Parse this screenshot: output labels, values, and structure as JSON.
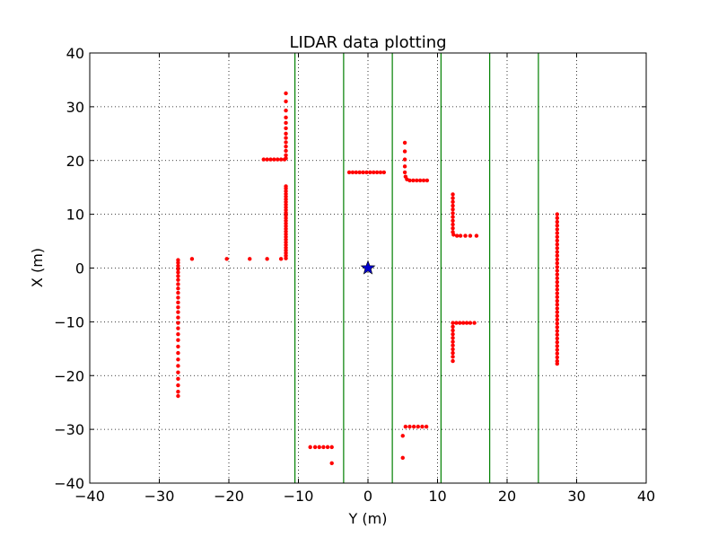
{
  "chart_data": {
    "type": "scatter",
    "title": "LIDAR data plotting",
    "xlabel": "Y (m)",
    "ylabel": "X (m)",
    "xlim": [
      -40,
      40
    ],
    "ylim": [
      -40,
      40
    ],
    "xticks": [
      -40,
      -30,
      -20,
      -10,
      0,
      10,
      20,
      30,
      40
    ],
    "yticks": [
      -40,
      -30,
      -20,
      -10,
      0,
      10,
      20,
      30,
      40
    ],
    "xtick_labels": [
      "−40",
      "−30",
      "−20",
      "−10",
      "0",
      "10",
      "20",
      "30",
      "40"
    ],
    "ytick_labels": [
      "−40",
      "−30",
      "−20",
      "−10",
      "0",
      "10",
      "20",
      "30",
      "40"
    ],
    "grid": true,
    "colors": {
      "points": "#ff0000",
      "lanes": "#008000",
      "vehicle": "#0000cc"
    },
    "lane_lines_x": [
      -10.5,
      -3.5,
      3.5,
      10.5,
      17.5,
      24.5
    ],
    "vehicle": {
      "x": 0,
      "y": 0,
      "marker": "star"
    },
    "points": [
      [
        -27.3,
        1.5
      ],
      [
        -27.3,
        1
      ],
      [
        -27.3,
        0.4
      ],
      [
        -27.3,
        -0.2
      ],
      [
        -27.3,
        -0.8
      ],
      [
        -27.3,
        -1.5
      ],
      [
        -27.3,
        -2.2
      ],
      [
        -27.3,
        -3
      ],
      [
        -27.3,
        -3.8
      ],
      [
        -27.3,
        -4.6
      ],
      [
        -27.3,
        -5.5
      ],
      [
        -27.3,
        -6.4
      ],
      [
        -27.3,
        -7.3
      ],
      [
        -27.3,
        -8.2
      ],
      [
        -27.3,
        -9.2
      ],
      [
        -27.3,
        -10.2
      ],
      [
        -27.3,
        -11.2
      ],
      [
        -27.3,
        -12.3
      ],
      [
        -27.3,
        -13.4
      ],
      [
        -27.3,
        -14.6
      ],
      [
        -27.3,
        -15.8
      ],
      [
        -27.3,
        -17
      ],
      [
        -27.3,
        -18.2
      ],
      [
        -27.3,
        -19.4
      ],
      [
        -27.3,
        -20.6
      ],
      [
        -27.3,
        -21.8
      ],
      [
        -27.3,
        -23
      ],
      [
        -27.3,
        -23.8
      ],
      [
        -25.3,
        1.7
      ],
      [
        -20.3,
        1.7
      ],
      [
        -17,
        1.7
      ],
      [
        -14.5,
        1.7
      ],
      [
        -12.5,
        1.7
      ],
      [
        -11.8,
        1.8
      ],
      [
        -11.8,
        2.3
      ],
      [
        -11.8,
        2.8
      ],
      [
        -11.8,
        3.3
      ],
      [
        -11.8,
        3.8
      ],
      [
        -11.8,
        4.3
      ],
      [
        -11.8,
        4.8
      ],
      [
        -11.8,
        5.3
      ],
      [
        -11.8,
        5.8
      ],
      [
        -11.8,
        6.3
      ],
      [
        -11.8,
        6.8
      ],
      [
        -11.8,
        7.3
      ],
      [
        -11.8,
        7.8
      ],
      [
        -11.8,
        8.3
      ],
      [
        -11.8,
        8.8
      ],
      [
        -11.8,
        9.3
      ],
      [
        -11.8,
        9.8
      ],
      [
        -11.8,
        10.3
      ],
      [
        -11.8,
        10.8
      ],
      [
        -11.8,
        11.3
      ],
      [
        -11.8,
        11.8
      ],
      [
        -11.8,
        12.3
      ],
      [
        -11.8,
        12.8
      ],
      [
        -11.8,
        13.3
      ],
      [
        -11.8,
        13.8
      ],
      [
        -11.8,
        14.3
      ],
      [
        -11.8,
        14.8
      ],
      [
        -11.8,
        15.2
      ],
      [
        -15,
        20.2
      ],
      [
        -14.5,
        20.2
      ],
      [
        -14,
        20.2
      ],
      [
        -13.5,
        20.2
      ],
      [
        -13,
        20.2
      ],
      [
        -12.5,
        20.2
      ],
      [
        -12,
        20.2
      ],
      [
        -11.8,
        20.4
      ],
      [
        -11.8,
        21
      ],
      [
        -11.8,
        21.8
      ],
      [
        -11.8,
        22.6
      ],
      [
        -11.8,
        23.4
      ],
      [
        -11.8,
        24.2
      ],
      [
        -11.8,
        25
      ],
      [
        -11.8,
        26
      ],
      [
        -11.8,
        27
      ],
      [
        -11.8,
        28
      ],
      [
        -11.8,
        29.3
      ],
      [
        -11.8,
        31
      ],
      [
        -11.8,
        32.5
      ],
      [
        1.8,
        17.8
      ],
      [
        1.3,
        17.8
      ],
      [
        0.8,
        17.8
      ],
      [
        0.3,
        17.8
      ],
      [
        -0.2,
        17.8
      ],
      [
        -0.7,
        17.8
      ],
      [
        -1.2,
        17.8
      ],
      [
        -1.7,
        17.8
      ],
      [
        -2.2,
        17.8
      ],
      [
        -2.7,
        17.8
      ],
      [
        2.3,
        17.8
      ],
      [
        5.3,
        23.3
      ],
      [
        5.3,
        21.7
      ],
      [
        5.3,
        20.2
      ],
      [
        5.3,
        18.9
      ],
      [
        5.3,
        17.8
      ],
      [
        5.4,
        17
      ],
      [
        5.6,
        16.5
      ],
      [
        6,
        16.3
      ],
      [
        6.5,
        16.3
      ],
      [
        7,
        16.3
      ],
      [
        7.5,
        16.3
      ],
      [
        8,
        16.3
      ],
      [
        8.5,
        16.3
      ],
      [
        12.2,
        13.7
      ],
      [
        12.2,
        13
      ],
      [
        12.2,
        12.3
      ],
      [
        12.2,
        11.6
      ],
      [
        12.2,
        10.9
      ],
      [
        12.2,
        10.2
      ],
      [
        12.2,
        9.5
      ],
      [
        12.2,
        8.8
      ],
      [
        12.2,
        8.1
      ],
      [
        12.2,
        7.4
      ],
      [
        12.2,
        6.7
      ],
      [
        12.3,
        6.2
      ],
      [
        12.8,
        6
      ],
      [
        13.3,
        6
      ],
      [
        14,
        6
      ],
      [
        14.7,
        6
      ],
      [
        15.6,
        6
      ],
      [
        12.2,
        -10.2
      ],
      [
        12.2,
        -10.9
      ],
      [
        12.2,
        -11.6
      ],
      [
        12.2,
        -12.3
      ],
      [
        12.2,
        -13
      ],
      [
        12.2,
        -13.7
      ],
      [
        12.2,
        -14.4
      ],
      [
        12.2,
        -15.1
      ],
      [
        12.2,
        -15.8
      ],
      [
        12.2,
        -16.5
      ],
      [
        12.2,
        -17.3
      ],
      [
        12.7,
        -10.2
      ],
      [
        13.2,
        -10.2
      ],
      [
        13.7,
        -10.2
      ],
      [
        14.2,
        -10.2
      ],
      [
        14.7,
        -10.2
      ],
      [
        15.3,
        -10.2
      ],
      [
        27.2,
        10
      ],
      [
        27.2,
        9.3
      ],
      [
        27.2,
        8.6
      ],
      [
        27.2,
        7.9
      ],
      [
        27.2,
        7.2
      ],
      [
        27.2,
        6.5
      ],
      [
        27.2,
        5.8
      ],
      [
        27.2,
        5.1
      ],
      [
        27.2,
        4.4
      ],
      [
        27.2,
        3.7
      ],
      [
        27.2,
        3
      ],
      [
        27.2,
        2.3
      ],
      [
        27.2,
        1.6
      ],
      [
        27.2,
        0.9
      ],
      [
        27.2,
        0.2
      ],
      [
        27.2,
        -0.5
      ],
      [
        27.2,
        -1.2
      ],
      [
        27.2,
        -1.9
      ],
      [
        27.2,
        -2.6
      ],
      [
        27.2,
        -3.3
      ],
      [
        27.2,
        -4
      ],
      [
        27.2,
        -4.7
      ],
      [
        27.2,
        -5.4
      ],
      [
        27.2,
        -6.1
      ],
      [
        27.2,
        -6.8
      ],
      [
        27.2,
        -7.5
      ],
      [
        27.2,
        -8.2
      ],
      [
        27.2,
        -8.9
      ],
      [
        27.2,
        -9.6
      ],
      [
        27.2,
        -10.3
      ],
      [
        27.2,
        -11
      ],
      [
        27.2,
        -11.7
      ],
      [
        27.2,
        -12.4
      ],
      [
        27.2,
        -13.1
      ],
      [
        27.2,
        -13.8
      ],
      [
        27.2,
        -14.5
      ],
      [
        27.2,
        -15.2
      ],
      [
        27.2,
        -15.9
      ],
      [
        27.2,
        -16.6
      ],
      [
        27.2,
        -17.3
      ],
      [
        27.2,
        -17.8
      ],
      [
        -8.3,
        -33.3
      ],
      [
        -7.6,
        -33.3
      ],
      [
        -7,
        -33.3
      ],
      [
        -6.4,
        -33.3
      ],
      [
        -5.8,
        -33.3
      ],
      [
        -5.2,
        -33.3
      ],
      [
        -5.2,
        -36.3
      ],
      [
        5,
        -31.2
      ],
      [
        5,
        -35.3
      ],
      [
        5.4,
        -29.5
      ],
      [
        6,
        -29.5
      ],
      [
        6.6,
        -29.5
      ],
      [
        7.2,
        -29.5
      ],
      [
        7.8,
        -29.5
      ],
      [
        8.4,
        -29.5
      ]
    ]
  }
}
